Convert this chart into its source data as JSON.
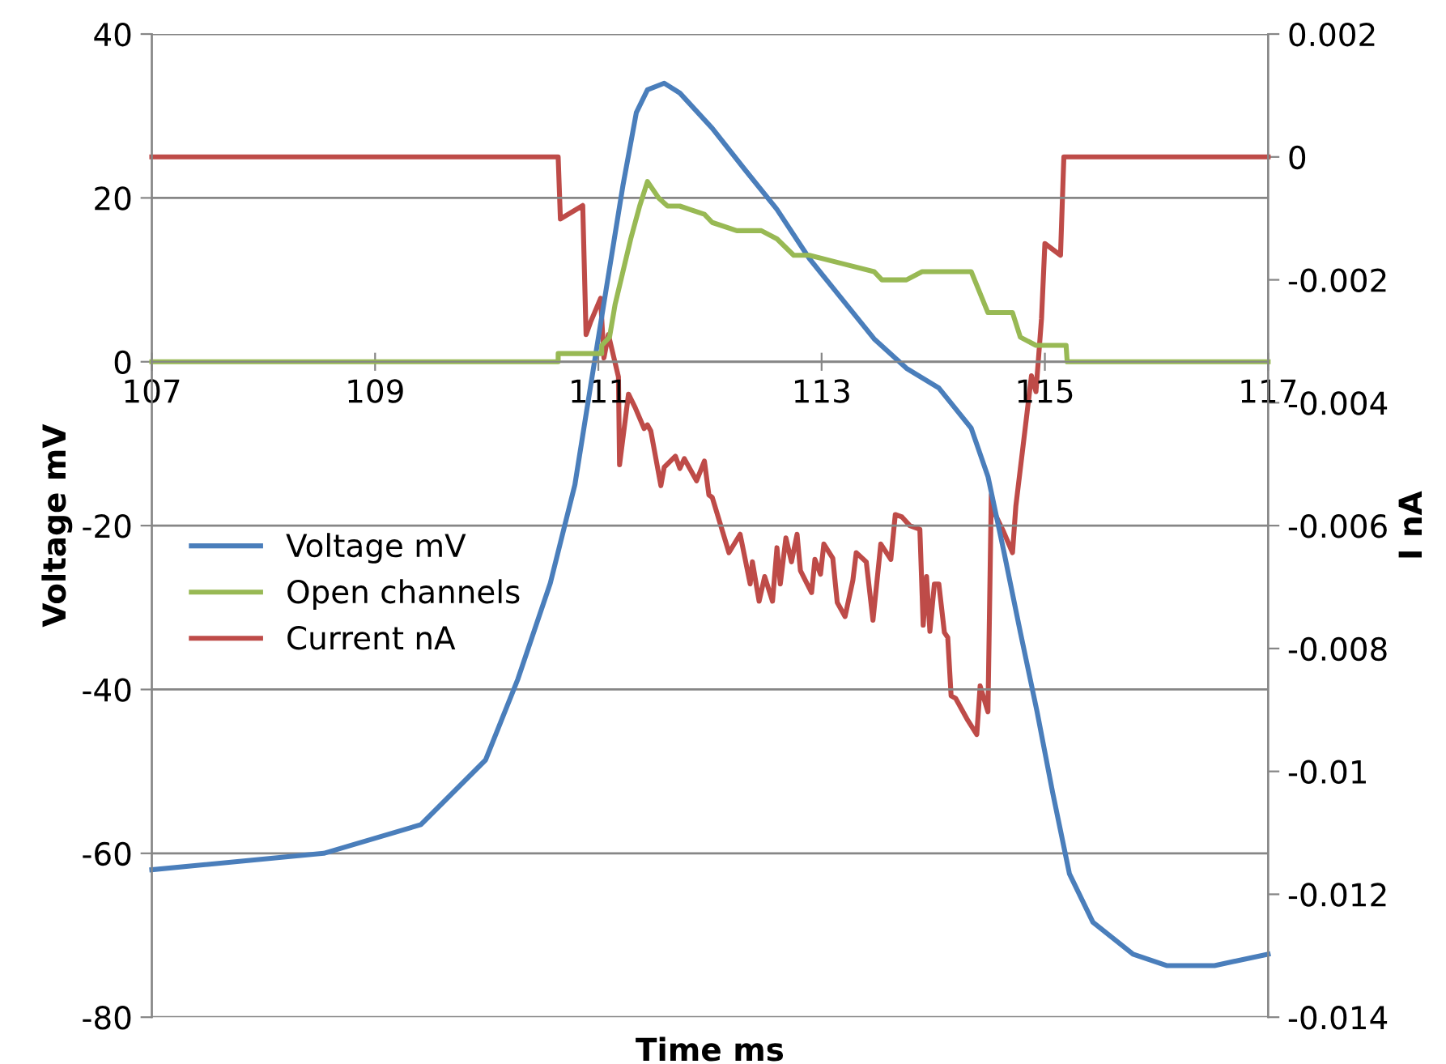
{
  "chart_data": {
    "type": "line",
    "xlabel": "Time ms",
    "ylabel": "Voltage mV",
    "y2label": "I nA",
    "xlim": [
      107,
      117
    ],
    "xticks": [
      107,
      109,
      111,
      113,
      115,
      117
    ],
    "ylim": [
      -80,
      40
    ],
    "yticks": [
      -80,
      -60,
      -40,
      -20,
      0,
      20,
      40
    ],
    "y2lim": [
      -0.014,
      0.002
    ],
    "y2ticks": [
      -0.014,
      -0.012,
      -0.01,
      -0.008,
      -0.006,
      -0.004,
      -0.002,
      0,
      0.002
    ],
    "grid": "y",
    "legend": "left",
    "marker": "none",
    "line_style": "solid",
    "series": [
      {
        "name": "Voltage mV",
        "color": "#4a7ebb",
        "x": [
          107,
          108.54,
          109.41,
          109.99,
          110.28,
          110.57,
          110.79,
          110.93,
          111.08,
          111.22,
          111.34,
          111.44,
          111.59,
          111.73,
          112.02,
          112.31,
          112.6,
          112.89,
          113.18,
          113.47,
          113.76,
          114.05,
          114.34,
          114.49,
          114.63,
          114.78,
          114.93,
          115.07,
          115.22,
          115.43,
          115.79,
          116.09,
          116.52,
          117
        ],
        "values": [
          -62,
          -60,
          -56.5,
          -48.6,
          -38.7,
          -27,
          -15,
          -3,
          9.7,
          21.5,
          30.4,
          33.2,
          34,
          32.8,
          28.5,
          23.5,
          18.6,
          12.6,
          7.7,
          2.8,
          -0.8,
          -3.2,
          -8.1,
          -14,
          -23,
          -33,
          -42.7,
          -52.6,
          -62.5,
          -68.4,
          -72.3,
          -73.7,
          -73.7,
          -72.3
        ]
      },
      {
        "name": "Open channels",
        "color": "#98b954",
        "x": [
          107,
          110.64,
          110.64,
          111.03,
          111.03,
          111.1,
          111.15,
          111.22,
          111.29,
          111.37,
          111.44,
          111.54,
          111.62,
          111.73,
          111.95,
          112.02,
          112.24,
          112.46,
          112.6,
          112.75,
          112.89,
          113.18,
          113.47,
          113.54,
          113.76,
          113.9,
          113.98,
          114.12,
          114.34,
          114.49,
          114.71,
          114.78,
          114.92,
          115.07,
          115.19,
          115.2,
          117
        ],
        "values": [
          0,
          0,
          1,
          1,
          2,
          3,
          7,
          11,
          15,
          19,
          22,
          20,
          19,
          19,
          18,
          17,
          16,
          16,
          15,
          13,
          13,
          12,
          11,
          10,
          10,
          11,
          11,
          11,
          11,
          6,
          6,
          3,
          2,
          2,
          2,
          0,
          0
        ]
      },
      {
        "name": "Current nA",
        "color": "#be4b48",
        "axis": "y2",
        "x": [
          107,
          110.64,
          110.66,
          110.86,
          110.89,
          110.93,
          111.02,
          111.05,
          111.09,
          111.18,
          111.19,
          111.27,
          111.33,
          111.41,
          111.44,
          111.47,
          111.56,
          111.59,
          111.69,
          111.73,
          111.77,
          111.88,
          111.95,
          111.99,
          112.02,
          112.17,
          112.27,
          112.36,
          112.38,
          112.44,
          112.49,
          112.56,
          112.6,
          112.63,
          112.68,
          112.73,
          112.78,
          112.81,
          112.91,
          112.94,
          112.99,
          113.02,
          113.1,
          113.14,
          113.21,
          113.28,
          113.31,
          113.4,
          113.46,
          113.53,
          113.62,
          113.66,
          113.72,
          113.79,
          113.88,
          113.91,
          113.94,
          113.97,
          114.01,
          114.05,
          114.1,
          114.13,
          114.16,
          114.2,
          114.31,
          114.39,
          114.42,
          114.49,
          114.52,
          114.55,
          114.63,
          114.71,
          114.74,
          114.82,
          114.88,
          114.92,
          114.97,
          115.0,
          115.14,
          115.17,
          117
        ],
        "values": [
          0,
          0,
          -0.00101,
          -0.00079,
          -0.00289,
          -0.00269,
          -0.0023,
          -0.00327,
          -0.00289,
          -0.00358,
          -0.00501,
          -0.00386,
          -0.00408,
          -0.00442,
          -0.00436,
          -0.00446,
          -0.00535,
          -0.00505,
          -0.00487,
          -0.00507,
          -0.00491,
          -0.00527,
          -0.00495,
          -0.0055,
          -0.00554,
          -0.00644,
          -0.00614,
          -0.00695,
          -0.00659,
          -0.00723,
          -0.00683,
          -0.00723,
          -0.00636,
          -0.00695,
          -0.0062,
          -0.00659,
          -0.00614,
          -0.00673,
          -0.00709,
          -0.00655,
          -0.00679,
          -0.0063,
          -0.00653,
          -0.00725,
          -0.00748,
          -0.00689,
          -0.00644,
          -0.00659,
          -0.00754,
          -0.0063,
          -0.00655,
          -0.00582,
          -0.00586,
          -0.006,
          -0.00606,
          -0.00762,
          -0.00683,
          -0.00772,
          -0.00695,
          -0.00695,
          -0.00774,
          -0.00782,
          -0.00877,
          -0.00881,
          -0.00917,
          -0.0094,
          -0.00861,
          -0.00903,
          -0.0055,
          -0.0058,
          -0.0061,
          -0.00644,
          -0.00568,
          -0.00447,
          -0.00356,
          -0.00382,
          -0.00263,
          -0.00141,
          -0.0016,
          0,
          0
        ]
      }
    ]
  }
}
